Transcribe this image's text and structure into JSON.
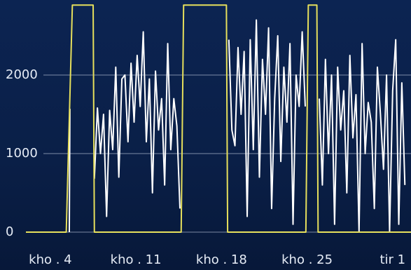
{
  "chart_data": {
    "type": "line",
    "xlim": [
      2,
      33.5
    ],
    "xticks": [
      {
        "value": 4,
        "label": "kho . 4"
      },
      {
        "value": 11,
        "label": "kho . 11"
      },
      {
        "value": 18,
        "label": "kho . 18"
      },
      {
        "value": 25,
        "label": "kho . 25"
      },
      {
        "value": 32,
        "label": "tir 1"
      }
    ],
    "ylim": [
      0,
      2955
    ],
    "yticks": [
      0,
      1000,
      2000
    ],
    "grid": true,
    "series": [
      {
        "color": "#ffffff",
        "x": [
          5.55,
          5.6,
          6.5,
          7.6,
          7.85,
          8.1,
          8.35,
          8.6,
          8.85,
          9.1,
          9.35,
          9.6,
          9.85,
          10.1,
          10.35,
          10.6,
          10.85,
          11.1,
          11.35,
          11.6,
          11.85,
          12.1,
          12.35,
          12.6,
          12.85,
          13.1,
          13.35,
          13.6,
          13.85,
          14.1,
          14.35,
          14.6,
          16,
          18.6,
          18.85,
          19.1,
          19.35,
          19.6,
          19.85,
          20.1,
          20.35,
          20.6,
          20.85,
          21.1,
          21.35,
          21.6,
          21.85,
          22.1,
          22.35,
          22.6,
          22.85,
          23.1,
          23.35,
          23.6,
          23.85,
          24.1,
          24.35,
          24.6,
          24.85,
          25.4,
          26,
          26.25,
          26.5,
          26.75,
          27,
          27.25,
          27.5,
          27.75,
          28,
          28.25,
          28.5,
          28.75,
          29,
          29.25,
          29.5,
          29.75,
          30,
          30.25,
          30.5,
          30.75,
          31,
          31.25,
          31.5,
          31.75,
          32,
          32.25,
          32.5,
          32.75,
          33
        ],
        "values": [
          0,
          1570,
          null,
          680,
          1580,
          1000,
          1500,
          200,
          1550,
          1050,
          2100,
          700,
          1950,
          2000,
          1150,
          2150,
          1400,
          2250,
          1600,
          2550,
          1150,
          1950,
          500,
          2050,
          1300,
          1700,
          600,
          2400,
          1050,
          1700,
          1350,
          300,
          null,
          2450,
          1300,
          1100,
          2350,
          1500,
          2300,
          200,
          2450,
          1050,
          2700,
          700,
          2200,
          1500,
          2600,
          300,
          1700,
          2500,
          900,
          2100,
          1400,
          2400,
          100,
          2000,
          1600,
          2550,
          1600,
          null,
          1700,
          600,
          2200,
          1000,
          2000,
          100,
          2100,
          1300,
          1800,
          500,
          2250,
          1200,
          1750,
          0,
          2400,
          1000,
          1650,
          1400,
          300,
          2100,
          1500,
          800,
          2000,
          0,
          1800,
          2450,
          100,
          1900,
          600
        ]
      },
      {
        "color": "#e6df5c",
        "x": [
          2,
          5.3,
          5.8,
          7.5,
          7.6,
          14.7,
          14.9,
          18.4,
          18.5,
          24.9,
          25.1,
          25.8,
          25.9,
          33.5
        ],
        "values": [
          0,
          0,
          2890,
          2890,
          0,
          0,
          2890,
          2890,
          0,
          0,
          2890,
          2890,
          0,
          0
        ]
      }
    ]
  }
}
